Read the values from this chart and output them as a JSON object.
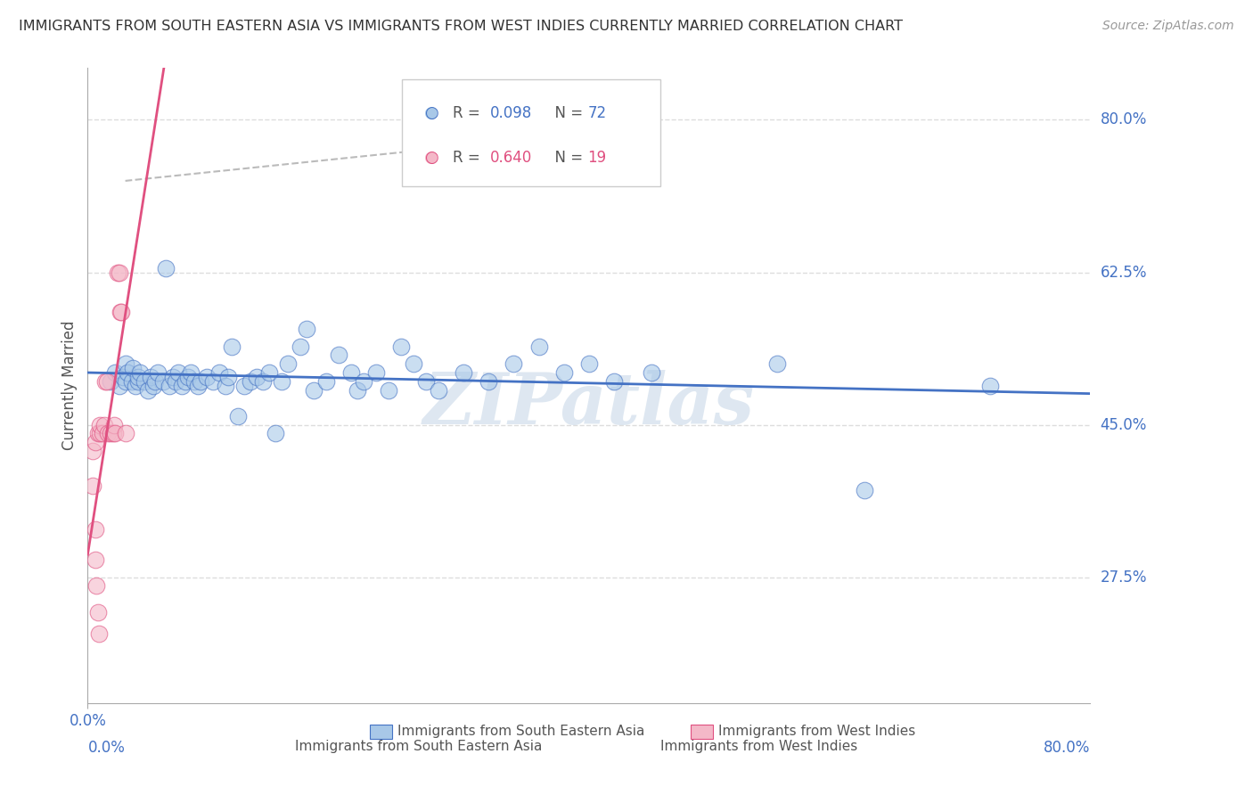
{
  "title": "IMMIGRANTS FROM SOUTH EASTERN ASIA VS IMMIGRANTS FROM WEST INDIES CURRENTLY MARRIED CORRELATION CHART",
  "source": "Source: ZipAtlas.com",
  "ylabel": "Currently Married",
  "y_ticks_right": [
    "80.0%",
    "62.5%",
    "45.0%",
    "27.5%"
  ],
  "y_ticks_right_vals": [
    0.8,
    0.625,
    0.45,
    0.275
  ],
  "xlim": [
    0.0,
    0.8
  ],
  "ylim": [
    0.13,
    0.86
  ],
  "legend_r1": "R = 0.098",
  "legend_n1": "N = 72",
  "legend_r2": "R = 0.640",
  "legend_n2": "N = 19",
  "color_blue": "#a8c8e8",
  "color_pink": "#f4b8c8",
  "color_blue_line": "#4472c4",
  "color_pink_line": "#e05080",
  "title_color": "#333333",
  "right_label_color": "#4472c4",
  "blue_scatter_x": [
    0.018,
    0.022,
    0.025,
    0.028,
    0.03,
    0.03,
    0.032,
    0.035,
    0.036,
    0.038,
    0.04,
    0.04,
    0.042,
    0.045,
    0.048,
    0.05,
    0.052,
    0.054,
    0.056,
    0.06,
    0.062,
    0.065,
    0.068,
    0.07,
    0.072,
    0.075,
    0.078,
    0.08,
    0.082,
    0.085,
    0.088,
    0.09,
    0.095,
    0.1,
    0.105,
    0.11,
    0.112,
    0.115,
    0.12,
    0.125,
    0.13,
    0.135,
    0.14,
    0.145,
    0.15,
    0.155,
    0.16,
    0.17,
    0.175,
    0.18,
    0.19,
    0.2,
    0.21,
    0.215,
    0.22,
    0.23,
    0.24,
    0.25,
    0.26,
    0.27,
    0.28,
    0.3,
    0.32,
    0.34,
    0.36,
    0.38,
    0.4,
    0.42,
    0.45,
    0.55,
    0.62,
    0.72
  ],
  "blue_scatter_y": [
    0.5,
    0.51,
    0.495,
    0.505,
    0.5,
    0.52,
    0.51,
    0.5,
    0.515,
    0.495,
    0.5,
    0.505,
    0.51,
    0.5,
    0.49,
    0.505,
    0.495,
    0.5,
    0.51,
    0.5,
    0.63,
    0.495,
    0.505,
    0.5,
    0.51,
    0.495,
    0.5,
    0.505,
    0.51,
    0.5,
    0.495,
    0.5,
    0.505,
    0.5,
    0.51,
    0.495,
    0.505,
    0.54,
    0.46,
    0.495,
    0.5,
    0.505,
    0.5,
    0.51,
    0.44,
    0.5,
    0.52,
    0.54,
    0.56,
    0.49,
    0.5,
    0.53,
    0.51,
    0.49,
    0.5,
    0.51,
    0.49,
    0.54,
    0.52,
    0.5,
    0.49,
    0.51,
    0.5,
    0.52,
    0.54,
    0.51,
    0.52,
    0.5,
    0.51,
    0.52,
    0.375,
    0.495
  ],
  "pink_scatter_x": [
    0.004,
    0.006,
    0.008,
    0.01,
    0.01,
    0.012,
    0.013,
    0.014,
    0.015,
    0.016,
    0.018,
    0.02,
    0.021,
    0.022,
    0.024,
    0.025,
    0.026,
    0.027,
    0.03
  ],
  "pink_scatter_y": [
    0.42,
    0.43,
    0.44,
    0.44,
    0.45,
    0.44,
    0.45,
    0.5,
    0.5,
    0.44,
    0.44,
    0.44,
    0.45,
    0.44,
    0.625,
    0.625,
    0.58,
    0.58,
    0.44
  ],
  "pink_low_x": [
    0.004,
    0.006,
    0.006,
    0.007,
    0.008,
    0.009
  ],
  "pink_low_y": [
    0.38,
    0.33,
    0.295,
    0.265,
    0.235,
    0.21
  ],
  "dashed_line_x": [
    0.03,
    0.4
  ],
  "dashed_line_y": [
    0.73,
    0.785
  ],
  "watermark": "ZIPatlas",
  "watermark_color": "#c8d8e8"
}
